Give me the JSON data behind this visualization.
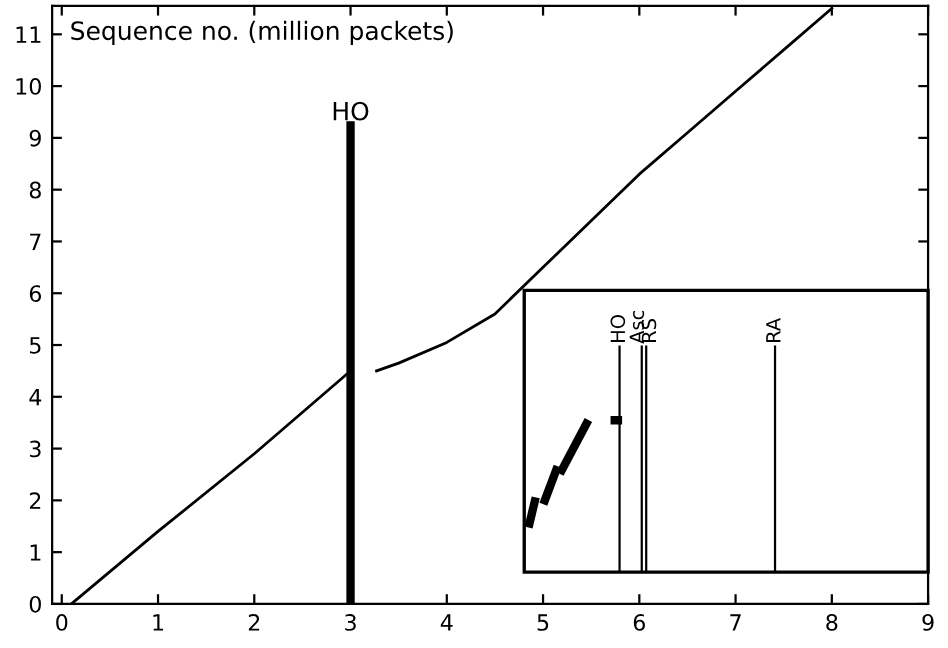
{
  "chart_data": [
    {
      "type": "line",
      "ylabel": "Sequence no. (million packets)",
      "xlim": [
        -0.1,
        9
      ],
      "ylim": [
        0,
        11.55
      ],
      "xticks": [
        0,
        1,
        2,
        3,
        4,
        5,
        6,
        7,
        8,
        9
      ],
      "yticks": [
        0,
        1,
        2,
        3,
        4,
        5,
        6,
        7,
        8,
        9,
        10,
        11
      ],
      "series": [
        {
          "color": "#000000",
          "x": [
            0.1,
            1,
            2,
            3
          ],
          "values": [
            0,
            1.4,
            2.9,
            4.5
          ]
        },
        {
          "color": "#000000",
          "x": [
            3.27,
            3.5,
            4,
            4.5,
            5,
            5.5,
            6,
            6.5,
            7,
            7.5,
            8
          ],
          "values": [
            4.5,
            4.65,
            5.05,
            5.6,
            6.5,
            7.4,
            8.3,
            9.1,
            9.9,
            10.7,
            11.5
          ]
        }
      ],
      "ref_lines": [
        {
          "axis": "x",
          "value": 3,
          "label": "HO",
          "color": "#000000"
        }
      ]
    },
    {
      "type": "other",
      "annotations": [
        "HO",
        "Asc",
        "RS",
        "RA"
      ]
    }
  ]
}
